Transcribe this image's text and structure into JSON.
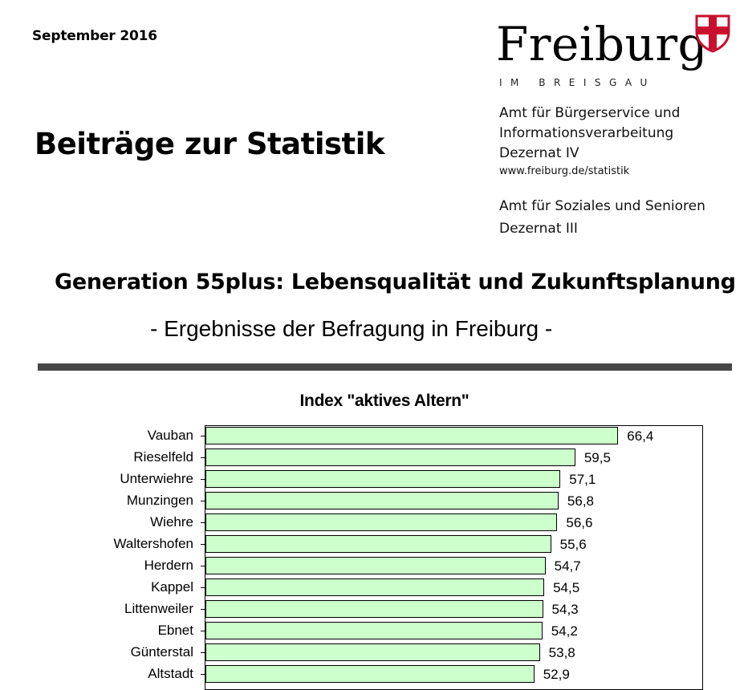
{
  "header": {
    "date": "September 2016",
    "series_title": "Beiträge zur Statistik",
    "logo": {
      "wordmark": "Freiburg",
      "subline": "IM BREISGAU",
      "shield_colors": {
        "field": "#ffffff",
        "cross": "#c8102e",
        "border": "#c8102e"
      }
    },
    "offices": [
      {
        "lines": [
          "Amt für Bürgerservice und",
          "Informationsverarbeitung",
          "Dezernat IV"
        ]
      },
      {
        "lines": [
          "Amt für Soziales und Senioren",
          "Dezernat III"
        ]
      }
    ],
    "url": "www.freiburg.de/statistik"
  },
  "main": {
    "title": "Generation 55plus: Lebensqualität und Zukunftsplanung",
    "subtitle": "- Ergebnisse der Befragung in Freiburg -",
    "rule_color": "#474747"
  },
  "chart_data": {
    "type": "bar",
    "orientation": "horizontal",
    "title": "Index \"aktives Altern\"",
    "xlabel": "",
    "ylabel": "",
    "categories": [
      "Vauban",
      "Rieselfeld",
      "Unterwiehre",
      "Munzingen",
      "Wiehre",
      "Waltershofen",
      "Herdern",
      "Kappel",
      "Littenweiler",
      "Ebnet",
      "Günterstal",
      "Altstadt"
    ],
    "values": [
      66.4,
      59.5,
      57.1,
      56.8,
      56.6,
      55.6,
      54.7,
      54.5,
      54.3,
      54.2,
      53.8,
      52.9
    ],
    "value_labels": [
      "66,4",
      "59,5",
      "57,1",
      "56,8",
      "56,6",
      "55,6",
      "54,7",
      "54,5",
      "54,3",
      "54,2",
      "53,8",
      "52,9"
    ],
    "xlim": [
      0,
      80
    ],
    "grid": false,
    "legend": null,
    "bar_color": "#ccffcc",
    "bar_edge_color": "#000000",
    "note": "Chart truncated at bottom of screenshot; Altstadt row partially visible"
  }
}
